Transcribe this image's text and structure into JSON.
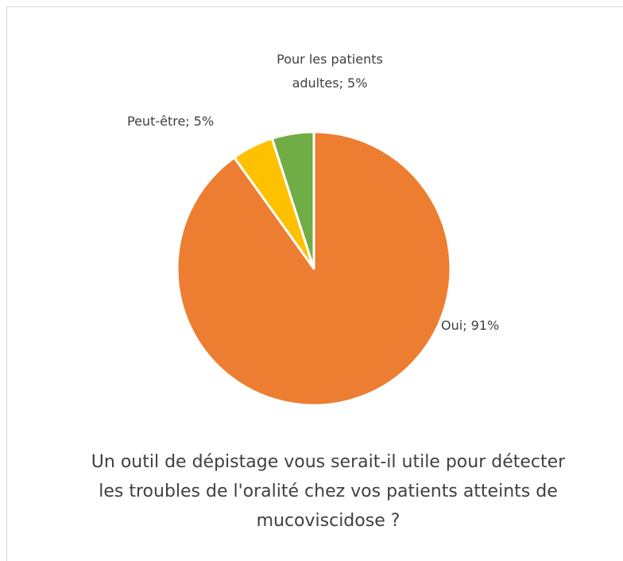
{
  "chart_data": {
    "type": "pie",
    "title": "Un outil de dépistage vous serait-il utile pour détecter les troubles de l'oralité chez vos patients atteints de mucoviscidose ?",
    "categories": [
      "Oui",
      "Peut-être",
      "Pour les patients adultes"
    ],
    "values": [
      91,
      5,
      5
    ],
    "value_labels": [
      "91%",
      "5%",
      "5%"
    ],
    "label_separator": "; ",
    "colors": [
      "#ED7D31",
      "#FFC000",
      "#70AD47"
    ]
  }
}
